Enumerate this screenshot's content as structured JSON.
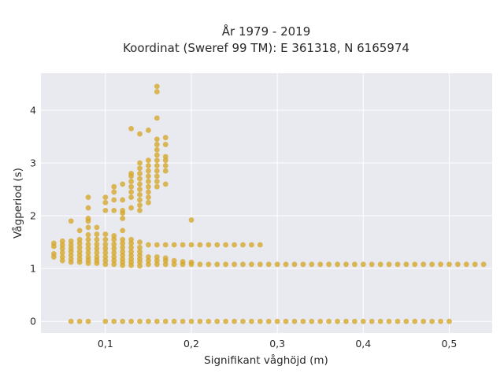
{
  "chart_data": {
    "type": "scatter",
    "title": "År 1979 - 2019",
    "subtitle": "Koordinat (Sweref 99 TM): E 361318, N 6165974",
    "xlabel": "Signifikant våghöjd (m)",
    "ylabel": "Vågperiod (s)",
    "xlim": [
      0.025,
      0.55
    ],
    "ylim": [
      -0.22,
      4.7
    ],
    "x_ticks": [
      0.1,
      0.2,
      0.3,
      0.4,
      0.5
    ],
    "x_tick_labels": [
      "0,1",
      "0,2",
      "0,3",
      "0,4",
      "0,5"
    ],
    "y_ticks": [
      0,
      1,
      2,
      3,
      4
    ],
    "y_tick_labels": [
      "0",
      "1",
      "2",
      "3",
      "4"
    ],
    "grid": true,
    "legend": "none",
    "marker_color": "#d4a72c",
    "plot_background": "#e9e9f0",
    "points": [
      [
        0.04,
        1.22
      ],
      [
        0.04,
        1.28
      ],
      [
        0.04,
        1.42
      ],
      [
        0.04,
        1.48
      ],
      [
        0.05,
        1.15
      ],
      [
        0.05,
        1.22
      ],
      [
        0.05,
        1.3
      ],
      [
        0.05,
        1.38
      ],
      [
        0.05,
        1.45
      ],
      [
        0.05,
        1.52
      ],
      [
        0.06,
        1.12
      ],
      [
        0.06,
        1.18
      ],
      [
        0.06,
        1.25
      ],
      [
        0.06,
        1.32
      ],
      [
        0.06,
        1.38
      ],
      [
        0.06,
        1.45
      ],
      [
        0.06,
        1.52
      ],
      [
        0.06,
        1.9
      ],
      [
        0.07,
        1.12
      ],
      [
        0.07,
        1.18
      ],
      [
        0.07,
        1.25
      ],
      [
        0.07,
        1.32
      ],
      [
        0.07,
        1.4
      ],
      [
        0.07,
        1.48
      ],
      [
        0.07,
        1.55
      ],
      [
        0.07,
        1.72
      ],
      [
        0.08,
        1.1
      ],
      [
        0.08,
        1.16
      ],
      [
        0.08,
        1.22
      ],
      [
        0.08,
        1.3
      ],
      [
        0.08,
        1.38
      ],
      [
        0.08,
        1.46
      ],
      [
        0.08,
        1.55
      ],
      [
        0.08,
        1.64
      ],
      [
        0.08,
        1.78
      ],
      [
        0.08,
        1.9
      ],
      [
        0.08,
        1.95
      ],
      [
        0.08,
        2.15
      ],
      [
        0.08,
        2.35
      ],
      [
        0.09,
        1.1
      ],
      [
        0.09,
        1.16
      ],
      [
        0.09,
        1.22
      ],
      [
        0.09,
        1.3
      ],
      [
        0.09,
        1.38
      ],
      [
        0.09,
        1.46
      ],
      [
        0.09,
        1.55
      ],
      [
        0.09,
        1.65
      ],
      [
        0.09,
        1.78
      ],
      [
        0.1,
        1.08
      ],
      [
        0.1,
        1.15
      ],
      [
        0.1,
        1.22
      ],
      [
        0.1,
        1.3
      ],
      [
        0.1,
        1.38
      ],
      [
        0.1,
        1.46
      ],
      [
        0.1,
        1.55
      ],
      [
        0.1,
        1.65
      ],
      [
        0.1,
        2.1
      ],
      [
        0.1,
        2.25
      ],
      [
        0.1,
        2.35
      ],
      [
        0.11,
        1.08
      ],
      [
        0.11,
        1.15
      ],
      [
        0.11,
        1.22
      ],
      [
        0.11,
        1.3
      ],
      [
        0.11,
        1.38
      ],
      [
        0.11,
        1.46
      ],
      [
        0.11,
        1.55
      ],
      [
        0.11,
        1.62
      ],
      [
        0.11,
        2.1
      ],
      [
        0.11,
        2.3
      ],
      [
        0.11,
        2.45
      ],
      [
        0.11,
        2.55
      ],
      [
        0.12,
        1.06
      ],
      [
        0.12,
        1.12
      ],
      [
        0.12,
        1.18
      ],
      [
        0.12,
        1.25
      ],
      [
        0.12,
        1.32
      ],
      [
        0.12,
        1.4
      ],
      [
        0.12,
        1.48
      ],
      [
        0.12,
        1.55
      ],
      [
        0.12,
        1.72
      ],
      [
        0.12,
        1.95
      ],
      [
        0.12,
        2.05
      ],
      [
        0.12,
        2.1
      ],
      [
        0.12,
        2.3
      ],
      [
        0.12,
        2.6
      ],
      [
        0.13,
        1.06
      ],
      [
        0.13,
        1.12
      ],
      [
        0.13,
        1.18
      ],
      [
        0.13,
        1.25
      ],
      [
        0.13,
        1.32
      ],
      [
        0.13,
        1.4
      ],
      [
        0.13,
        1.48
      ],
      [
        0.13,
        1.55
      ],
      [
        0.13,
        2.15
      ],
      [
        0.13,
        2.35
      ],
      [
        0.13,
        2.45
      ],
      [
        0.13,
        2.55
      ],
      [
        0.13,
        2.65
      ],
      [
        0.13,
        2.75
      ],
      [
        0.13,
        2.8
      ],
      [
        0.13,
        3.65
      ],
      [
        0.14,
        1.05
      ],
      [
        0.14,
        1.12
      ],
      [
        0.14,
        1.18
      ],
      [
        0.14,
        1.25
      ],
      [
        0.14,
        1.32
      ],
      [
        0.14,
        1.4
      ],
      [
        0.14,
        1.5
      ],
      [
        0.14,
        2.1
      ],
      [
        0.14,
        2.2
      ],
      [
        0.14,
        2.3
      ],
      [
        0.14,
        2.4
      ],
      [
        0.14,
        2.5
      ],
      [
        0.14,
        2.6
      ],
      [
        0.14,
        2.7
      ],
      [
        0.14,
        2.8
      ],
      [
        0.14,
        2.9
      ],
      [
        0.14,
        3.0
      ],
      [
        0.14,
        3.55
      ],
      [
        0.15,
        1.08
      ],
      [
        0.15,
        1.15
      ],
      [
        0.15,
        1.22
      ],
      [
        0.15,
        1.45
      ],
      [
        0.15,
        2.25
      ],
      [
        0.15,
        2.35
      ],
      [
        0.15,
        2.45
      ],
      [
        0.15,
        2.55
      ],
      [
        0.15,
        2.65
      ],
      [
        0.15,
        2.75
      ],
      [
        0.15,
        2.85
      ],
      [
        0.15,
        2.95
      ],
      [
        0.15,
        3.05
      ],
      [
        0.15,
        3.62
      ],
      [
        0.16,
        1.08
      ],
      [
        0.16,
        1.15
      ],
      [
        0.16,
        1.22
      ],
      [
        0.16,
        1.45
      ],
      [
        0.16,
        2.55
      ],
      [
        0.16,
        2.65
      ],
      [
        0.16,
        2.75
      ],
      [
        0.16,
        2.85
      ],
      [
        0.16,
        2.95
      ],
      [
        0.16,
        3.05
      ],
      [
        0.16,
        3.15
      ],
      [
        0.16,
        3.25
      ],
      [
        0.16,
        3.35
      ],
      [
        0.16,
        3.45
      ],
      [
        0.16,
        3.85
      ],
      [
        0.16,
        4.35
      ],
      [
        0.16,
        4.45
      ],
      [
        0.17,
        1.08
      ],
      [
        0.17,
        1.15
      ],
      [
        0.17,
        1.2
      ],
      [
        0.17,
        1.45
      ],
      [
        0.17,
        2.6
      ],
      [
        0.17,
        2.85
      ],
      [
        0.17,
        2.95
      ],
      [
        0.17,
        3.05
      ],
      [
        0.17,
        3.12
      ],
      [
        0.17,
        3.35
      ],
      [
        0.17,
        3.48
      ],
      [
        0.18,
        1.08
      ],
      [
        0.18,
        1.15
      ],
      [
        0.18,
        1.45
      ],
      [
        0.19,
        1.08
      ],
      [
        0.19,
        1.13
      ],
      [
        0.19,
        1.45
      ],
      [
        0.2,
        1.08
      ],
      [
        0.2,
        1.12
      ],
      [
        0.2,
        1.45
      ],
      [
        0.2,
        1.92
      ],
      [
        0.21,
        1.08
      ],
      [
        0.21,
        1.45
      ],
      [
        0.22,
        1.08
      ],
      [
        0.22,
        1.45
      ],
      [
        0.23,
        1.08
      ],
      [
        0.23,
        1.45
      ],
      [
        0.24,
        1.08
      ],
      [
        0.24,
        1.45
      ],
      [
        0.25,
        1.08
      ],
      [
        0.25,
        1.45
      ],
      [
        0.26,
        1.08
      ],
      [
        0.26,
        1.45
      ],
      [
        0.27,
        1.08
      ],
      [
        0.27,
        1.45
      ],
      [
        0.28,
        1.08
      ],
      [
        0.28,
        1.45
      ],
      [
        0.29,
        1.08
      ],
      [
        0.3,
        1.08
      ],
      [
        0.31,
        1.08
      ],
      [
        0.32,
        1.08
      ],
      [
        0.33,
        1.08
      ],
      [
        0.34,
        1.08
      ],
      [
        0.35,
        1.08
      ],
      [
        0.36,
        1.08
      ],
      [
        0.37,
        1.08
      ],
      [
        0.38,
        1.08
      ],
      [
        0.39,
        1.08
      ],
      [
        0.4,
        1.08
      ],
      [
        0.41,
        1.08
      ],
      [
        0.42,
        1.08
      ],
      [
        0.43,
        1.08
      ],
      [
        0.44,
        1.08
      ],
      [
        0.45,
        1.08
      ],
      [
        0.46,
        1.08
      ],
      [
        0.47,
        1.08
      ],
      [
        0.48,
        1.08
      ],
      [
        0.49,
        1.08
      ],
      [
        0.5,
        1.08
      ],
      [
        0.51,
        1.08
      ],
      [
        0.52,
        1.08
      ],
      [
        0.53,
        1.08
      ],
      [
        0.54,
        1.08
      ],
      [
        0.06,
        0
      ],
      [
        0.07,
        0
      ],
      [
        0.08,
        0
      ],
      [
        0.1,
        0
      ],
      [
        0.11,
        0
      ],
      [
        0.12,
        0
      ],
      [
        0.13,
        0
      ],
      [
        0.14,
        0
      ],
      [
        0.15,
        0
      ],
      [
        0.16,
        0
      ],
      [
        0.17,
        0
      ],
      [
        0.18,
        0
      ],
      [
        0.19,
        0
      ],
      [
        0.2,
        0
      ],
      [
        0.21,
        0
      ],
      [
        0.22,
        0
      ],
      [
        0.23,
        0
      ],
      [
        0.24,
        0
      ],
      [
        0.25,
        0
      ],
      [
        0.26,
        0
      ],
      [
        0.27,
        0
      ],
      [
        0.28,
        0
      ],
      [
        0.29,
        0
      ],
      [
        0.3,
        0
      ],
      [
        0.31,
        0
      ],
      [
        0.32,
        0
      ],
      [
        0.33,
        0
      ],
      [
        0.34,
        0
      ],
      [
        0.35,
        0
      ],
      [
        0.36,
        0
      ],
      [
        0.37,
        0
      ],
      [
        0.38,
        0
      ],
      [
        0.39,
        0
      ],
      [
        0.4,
        0
      ],
      [
        0.41,
        0
      ],
      [
        0.42,
        0
      ],
      [
        0.43,
        0
      ],
      [
        0.44,
        0
      ],
      [
        0.45,
        0
      ],
      [
        0.46,
        0
      ],
      [
        0.47,
        0
      ],
      [
        0.48,
        0
      ],
      [
        0.49,
        0
      ],
      [
        0.5,
        0
      ]
    ]
  }
}
